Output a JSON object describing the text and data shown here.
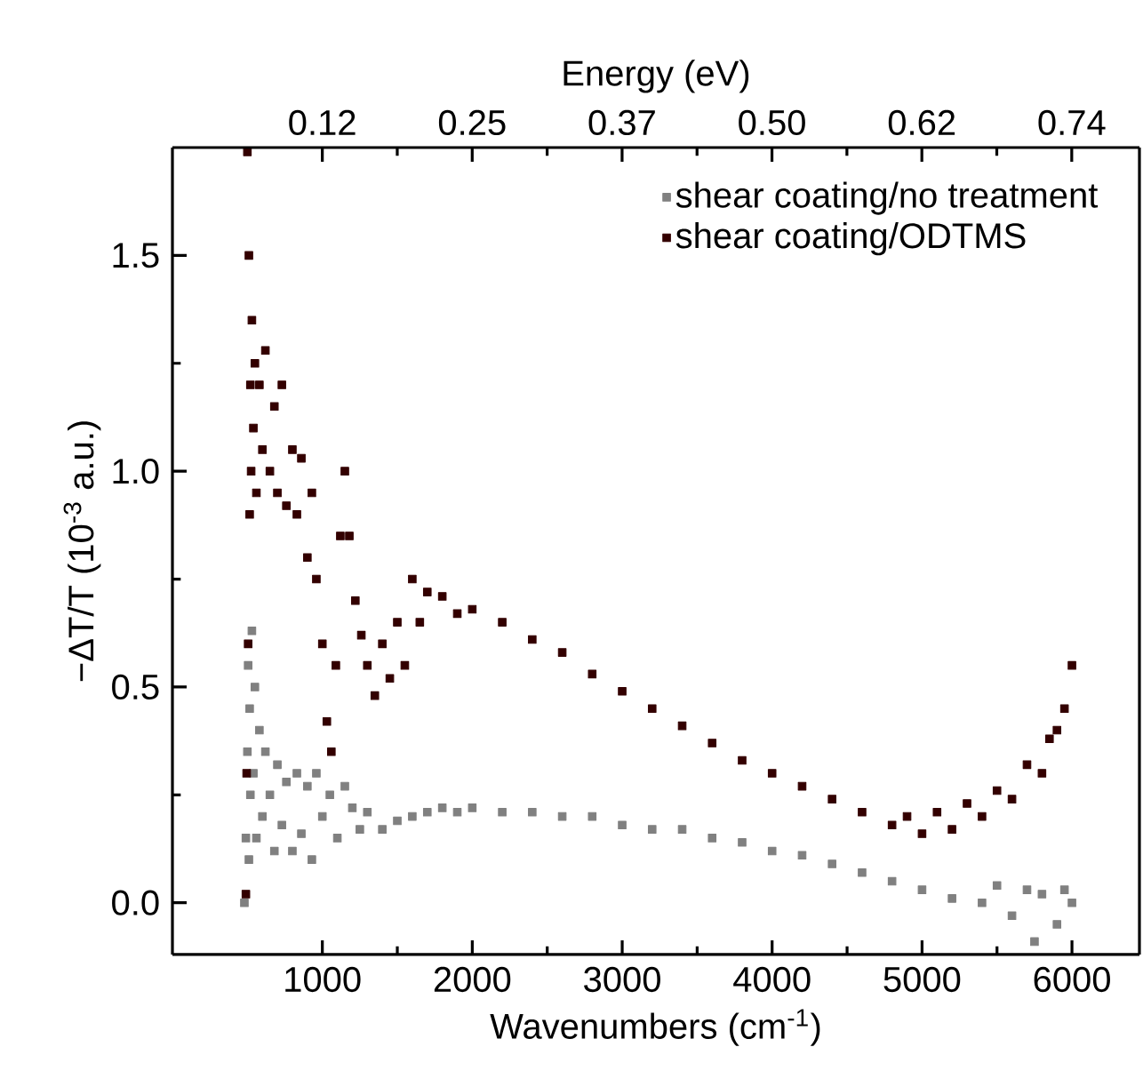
{
  "chart_data": {
    "type": "scatter",
    "xlabel": "Wavenumbers (cm$^{-1}$)",
    "ylabel": "−ΔT/T (10$^{-3}$ a.u.)",
    "x2label": "Energy (eV)",
    "xlim": [
      0,
      6450
    ],
    "ylim": [
      -0.12,
      1.75
    ],
    "x2lim": [
      0,
      0.8
    ],
    "xticks": [
      1000,
      2000,
      3000,
      4000,
      5000,
      6000
    ],
    "yticks": [
      {
        "value": 0,
        "label": "0.0"
      },
      {
        "value": 0.5,
        "label": "0.5"
      },
      {
        "value": 1.0,
        "label": "1.0"
      },
      {
        "value": 1.5,
        "label": "1.5"
      }
    ],
    "x2ticks": [
      {
        "value": 0.124,
        "label": "0.12"
      },
      {
        "value": 0.248,
        "label": "0.25"
      },
      {
        "value": 0.372,
        "label": "0.37"
      },
      {
        "value": 0.496,
        "label": "0.50"
      },
      {
        "value": 0.62,
        "label": "0.62"
      },
      {
        "value": 0.744,
        "label": "0.74"
      }
    ],
    "marker": "square",
    "legend": "top right",
    "grid": false,
    "series": [
      {
        "name": "shear coating/no treatment",
        "color": "#808080",
        "x": [
          480,
          490,
          500,
          505,
          510,
          515,
          520,
          530,
          540,
          550,
          560,
          580,
          600,
          620,
          650,
          680,
          700,
          730,
          760,
          800,
          830,
          860,
          900,
          930,
          960,
          1000,
          1050,
          1100,
          1150,
          1200,
          1250,
          1300,
          1400,
          1500,
          1600,
          1700,
          1800,
          1900,
          2000,
          2200,
          2400,
          2600,
          2800,
          3000,
          3200,
          3400,
          3600,
          3800,
          4000,
          4200,
          4400,
          4600,
          4800,
          5000,
          5200,
          5400,
          5500,
          5600,
          5700,
          5750,
          5800,
          5900,
          5950,
          6000
        ],
        "values": [
          0.0,
          0.15,
          0.35,
          0.55,
          0.1,
          0.45,
          0.25,
          0.63,
          0.3,
          0.5,
          0.15,
          0.4,
          0.2,
          0.35,
          0.25,
          0.12,
          0.32,
          0.18,
          0.28,
          0.12,
          0.3,
          0.16,
          0.27,
          0.1,
          0.3,
          0.2,
          0.25,
          0.15,
          0.27,
          0.22,
          0.17,
          0.21,
          0.17,
          0.19,
          0.2,
          0.21,
          0.22,
          0.21,
          0.22,
          0.21,
          0.21,
          0.2,
          0.2,
          0.18,
          0.17,
          0.17,
          0.15,
          0.14,
          0.12,
          0.11,
          0.09,
          0.07,
          0.05,
          0.03,
          0.01,
          0.0,
          0.04,
          -0.03,
          0.03,
          -0.09,
          0.02,
          -0.05,
          0.03,
          0.0
        ]
      },
      {
        "name": "shear coating/ODTMS",
        "color": "#330000",
        "x": [
          490,
          495,
          500,
          505,
          510,
          515,
          520,
          525,
          530,
          540,
          550,
          560,
          580,
          600,
          620,
          650,
          680,
          700,
          730,
          760,
          800,
          830,
          860,
          900,
          930,
          960,
          1000,
          1030,
          1060,
          1090,
          1120,
          1150,
          1180,
          1220,
          1260,
          1300,
          1350,
          1400,
          1450,
          1500,
          1550,
          1600,
          1650,
          1700,
          1800,
          1900,
          2000,
          2200,
          2400,
          2600,
          2800,
          3000,
          3200,
          3400,
          3600,
          3800,
          4000,
          4200,
          4400,
          4600,
          4800,
          4900,
          5000,
          5100,
          5200,
          5300,
          5400,
          5500,
          5600,
          5700,
          5800,
          5850,
          5900,
          5950,
          6000
        ],
        "values": [
          0.02,
          0.3,
          1.74,
          0.6,
          1.5,
          0.9,
          1.2,
          1.0,
          1.35,
          1.1,
          1.25,
          0.95,
          1.2,
          1.05,
          1.28,
          1.0,
          1.15,
          0.95,
          1.2,
          0.92,
          1.05,
          0.9,
          1.03,
          0.8,
          0.95,
          0.75,
          0.6,
          0.42,
          0.35,
          0.55,
          0.85,
          1.0,
          0.85,
          0.7,
          0.62,
          0.55,
          0.48,
          0.6,
          0.52,
          0.65,
          0.55,
          0.75,
          0.65,
          0.72,
          0.71,
          0.67,
          0.68,
          0.65,
          0.61,
          0.58,
          0.53,
          0.49,
          0.45,
          0.41,
          0.37,
          0.33,
          0.3,
          0.27,
          0.24,
          0.21,
          0.18,
          0.2,
          0.16,
          0.21,
          0.17,
          0.23,
          0.2,
          0.26,
          0.24,
          0.32,
          0.3,
          0.38,
          0.4,
          0.45,
          0.55
        ]
      }
    ]
  }
}
